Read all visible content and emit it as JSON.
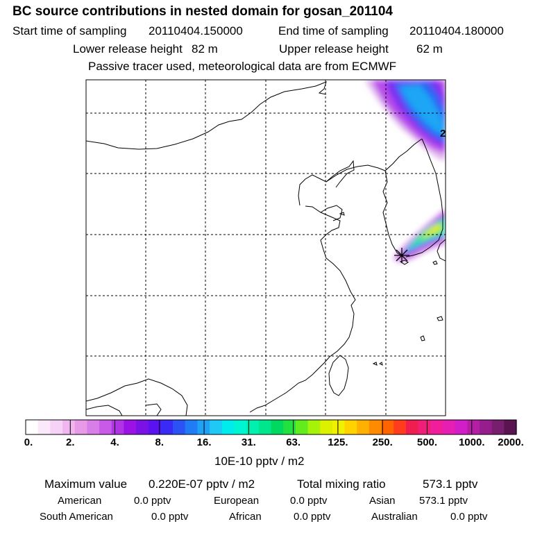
{
  "header": {
    "title": "BC  source contributions in nested domain for gosan_201104",
    "start_label": "Start time of sampling",
    "start_value": "20110404.150000",
    "end_label": "End time of sampling",
    "end_value": "20110404.180000",
    "lower_label": "Lower release height",
    "lower_value": "82 m",
    "upper_label": "Upper release height",
    "upper_value": "62 m",
    "note": "Passive tracer used, meteorological data are from ECMWF"
  },
  "map": {
    "contour_label": "2",
    "colors": {
      "coast": "#000000",
      "grid": "#000000",
      "receptor": "#000000"
    }
  },
  "colorbar": {
    "colors": [
      "#ffffff",
      "#fbe8fb",
      "#f6d3f6",
      "#f0b6f0",
      "#e89ae8",
      "#d77ee8",
      "#c95ae8",
      "#b133e6",
      "#9b12e6",
      "#7a12e6",
      "#5a12f0",
      "#3a2af5",
      "#2a52f5",
      "#1f7cf5",
      "#1fa2f5",
      "#1fc8f5",
      "#00ecec",
      "#00f5d2",
      "#00f0b0",
      "#00e68c",
      "#00d860",
      "#22e040",
      "#62ec1e",
      "#a6f20a",
      "#dcf000",
      "#f0f000",
      "#ffd200",
      "#ffb000",
      "#ff8c00",
      "#ff6400",
      "#ff3c1e",
      "#f01e50",
      "#f01e78",
      "#f01e9b",
      "#e61eb4",
      "#d21ec8",
      "#b41ea5",
      "#961e8c",
      "#781e6e",
      "#5a1450"
    ],
    "ticks": [
      "0.",
      "2.",
      "4.",
      "8.",
      "16.",
      "31.",
      "63.",
      "125.",
      "250.",
      "500.",
      "1000.",
      "2000."
    ],
    "unit": "10E-10 pptv / m2"
  },
  "stats": {
    "max_label": "Maximum value",
    "max_value": "0.220E-07 pptv / m2",
    "total_label": "Total mixing ratio",
    "total_value": "573.1 pptv",
    "regions": [
      {
        "name": "American",
        "value": "0.0 pptv"
      },
      {
        "name": "European",
        "value": "0.0 pptv"
      },
      {
        "name": "Asian",
        "value": "573.1 pptv"
      },
      {
        "name": "South American",
        "value": "0.0 pptv"
      },
      {
        "name": "African",
        "value": "0.0 pptv"
      },
      {
        "name": "Australian",
        "value": "0.0 pptv"
      }
    ]
  }
}
